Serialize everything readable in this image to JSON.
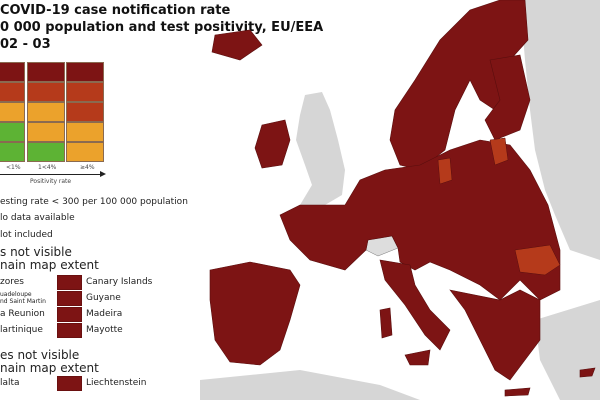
{
  "title": {
    "line1": "COVID-19 case notification rate",
    "line2": "0 000 population and test positivity, EU/EEA",
    "line3": "02 - 03"
  },
  "colors": {
    "dark_red": "#7d1414",
    "red": "#b53a1b",
    "orange": "#eba22c",
    "green": "#5db334",
    "non_eu_land": "#d6d6d6",
    "sea": "#ffffff"
  },
  "matrix": {
    "rows": [
      [
        "dark_red",
        "dark_red",
        "dark_red"
      ],
      [
        "red",
        "red",
        "red"
      ],
      [
        "orange",
        "orange",
        "red"
      ],
      [
        "green",
        "orange",
        "orange"
      ],
      [
        "green",
        "green",
        "orange"
      ]
    ],
    "x_ticks": [
      "<1%",
      "1<4%",
      "≥4%"
    ],
    "x_label": "Positivity rate"
  },
  "legend": {
    "testing_rate": "esting rate < 300 per 100 000 population",
    "no_data": "lo data available",
    "not_included": "lot included",
    "regions_heading_1": "s not visible",
    "regions_heading_2": "nain map extent",
    "regions": [
      {
        "left": "zores",
        "right": "Canary Islands"
      },
      {
        "left": "uadeloupe\nnd Saint Martin",
        "right": "Guyane"
      },
      {
        "left": "a Reunion",
        "right": "Madeira"
      },
      {
        "left": "lartinique",
        "right": "Mayotte"
      }
    ],
    "countries_heading_1": "es not visible",
    "countries_heading_2": "nain map extent",
    "countries": [
      {
        "left": "lalta",
        "right": "Liechtenstein"
      }
    ]
  },
  "map": {
    "default_category": "dark_red",
    "highlighted_regions_category": "red"
  }
}
